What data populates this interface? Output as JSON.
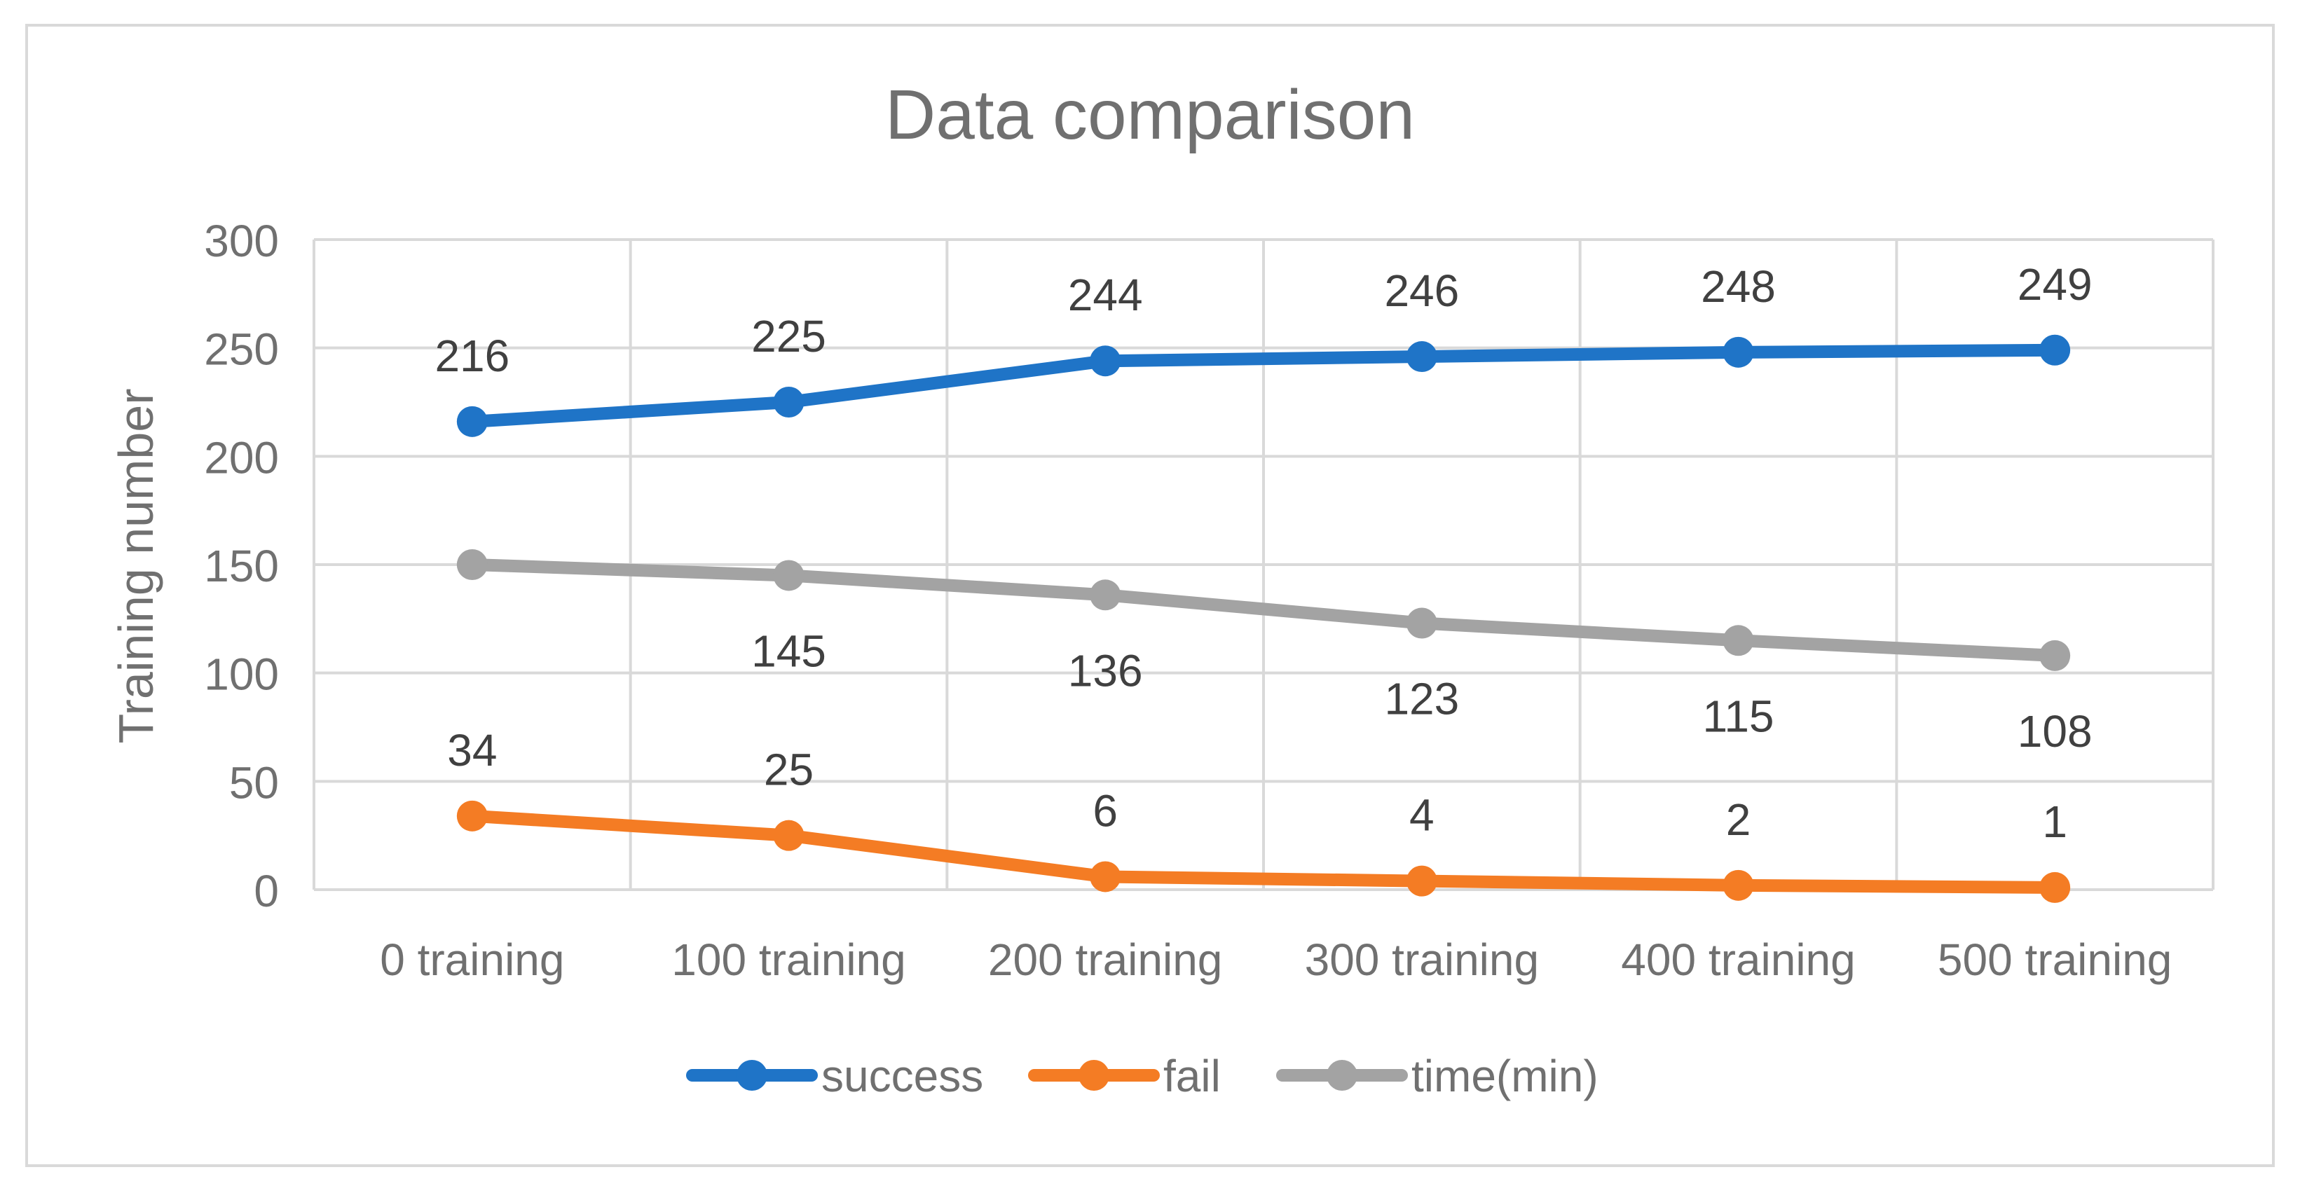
{
  "chart_data": {
    "type": "line",
    "title": "Data comparison",
    "xlabel": "",
    "ylabel": "Training number",
    "categories": [
      "0 training",
      "100 training",
      "200 training",
      "300 training",
      "400 training",
      "500 training"
    ],
    "ylim": [
      0,
      300
    ],
    "yticks": [
      0,
      50,
      100,
      150,
      200,
      250,
      300
    ],
    "grid": true,
    "legend_position": "bottom",
    "series": [
      {
        "name": "success",
        "color": "#1f74c7",
        "values": [
          216,
          225,
          244,
          246,
          248,
          249
        ],
        "label_position": "above"
      },
      {
        "name": "fail",
        "color": "#f47c24",
        "values": [
          34,
          25,
          6,
          4,
          2,
          1
        ],
        "label_position": "above"
      },
      {
        "name": "time(min)",
        "color": "#a3a3a3",
        "values": [
          150,
          145,
          136,
          123,
          115,
          108
        ],
        "label_position": "below",
        "label_skip": [
          0
        ]
      }
    ]
  }
}
